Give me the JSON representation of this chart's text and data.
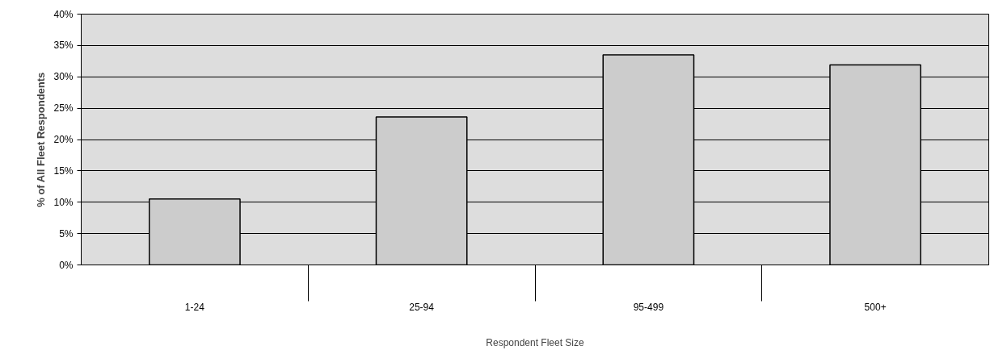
{
  "chart_data": {
    "type": "bar",
    "xlabel": "Respondent Fleet Size",
    "ylabel": "% of All Fleet Respondents",
    "categories": [
      "1-24",
      "25-94",
      "95-499",
      "500+"
    ],
    "series": [
      {
        "color": "#cccccc",
        "values": [
          10.5,
          23.6,
          33.5,
          31.9
        ]
      }
    ],
    "ylim": [
      0,
      40
    ],
    "yticks": [
      {
        "value": 0,
        "label": "0%"
      },
      {
        "value": 5,
        "label": "5%"
      },
      {
        "value": 10,
        "label": "10%"
      },
      {
        "value": 15,
        "label": "15%"
      },
      {
        "value": 20,
        "label": "20%"
      },
      {
        "value": 25,
        "label": "25%"
      },
      {
        "value": 30,
        "label": "30%"
      },
      {
        "value": 35,
        "label": "35%"
      },
      {
        "value": 40,
        "label": "40%"
      }
    ],
    "grid": "y"
  }
}
